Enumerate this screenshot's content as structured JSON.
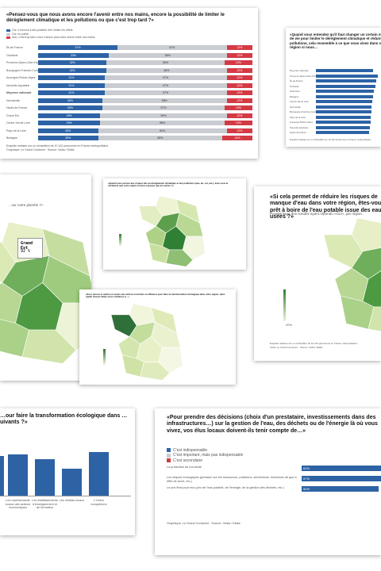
{
  "card1": {
    "title": "«Pensez-vous que nous avons encore l'avenir entre nos mains, encore la possibilité de limiter le dérèglement climatique et les pollutions ou que c'est trop tard ?»",
    "legend": [
      {
        "name": "Oui, il est tout à fait possible d'en limiter les effets",
        "color": "#2d63a5"
      },
      {
        "name": "Oui, en partie",
        "color": "#c9ccd1"
      },
      {
        "name": "Non, c'est trop tard, nous n'avons plus notre avenir entre nos mains",
        "color": "#d43a45"
      }
    ],
    "rows": [
      {
        "label": "Île-de-France",
        "values": [
          37,
          51,
          12
        ],
        "value_labels": [
          "37%",
          "51%",
          "12%"
        ]
      },
      {
        "label": "Occitanie",
        "values": [
          33,
          55,
          12
        ],
        "value_labels": [
          "33%",
          "55%",
          "12%"
        ]
      },
      {
        "label": "Provence-Alpes-Côte d'Azur",
        "values": [
          32,
          55,
          13
        ],
        "value_labels": [
          "32%",
          "55%",
          "13%"
        ]
      },
      {
        "label": "Bourgogne-Franche-Comté",
        "values": [
          32,
          56,
          12
        ],
        "value_labels": [
          "32%",
          "56%",
          "12%"
        ]
      },
      {
        "label": "Auvergne-Rhône-Alpes",
        "values": [
          31,
          57,
          12
        ],
        "value_labels": [
          "31%",
          "57%",
          "12%"
        ]
      },
      {
        "label": "Nouvelle-Aquitaine",
        "values": [
          31,
          57,
          12
        ],
        "value_labels": [
          "31%",
          "57%",
          "12%"
        ]
      },
      {
        "label": "Moyenne nationale",
        "values": [
          31,
          57,
          12
        ],
        "value_labels": [
          "31%",
          "57%",
          "12%"
        ]
      },
      {
        "label": "Normandie",
        "values": [
          30,
          58,
          12
        ],
        "value_labels": [
          "30%",
          "58%",
          "12%"
        ]
      },
      {
        "label": "Hauts-de-France",
        "values": [
          30,
          57,
          13
        ],
        "value_labels": [
          "30%",
          "57%",
          "13%"
        ]
      },
      {
        "label": "Grand Est",
        "values": [
          29,
          59,
          12
        ],
        "value_labels": [
          "29%",
          "59%",
          "12%"
        ]
      },
      {
        "label": "Centre-Val de Loire",
        "values": [
          29,
          58,
          13
        ],
        "value_labels": [
          "29%",
          "58%",
          "13%"
        ]
      },
      {
        "label": "Pays de la Loire",
        "values": [
          28,
          60,
          12
        ],
        "value_labels": [
          "28%",
          "60%",
          "12%"
        ]
      },
      {
        "label": "Bretagne",
        "values": [
          28,
          58,
          14
        ],
        "value_labels": [
          "28%",
          "58%",
          "14%"
        ]
      }
    ],
    "note": "Enquête réalisée sur un échantillon de 10 142 personnes en France métropolitaine.",
    "credit": "Graphique: Le Grand Continent · Source: Vedia / Elabe"
  },
  "card2": {
    "title": "«Quand vous entendez qu'il faut changer un certain mode de vie pour limiter le dérèglement climatique et réduire les pollutions, cela ressemble à ce que vous vivez dans votre région si nous…",
    "color": "#2d63a5",
    "rows": [
      {
        "label": "Moyenne nationale",
        "value": 72
      },
      {
        "label": "Provence-Alpes-Côte d'Azur",
        "value": 78
      },
      {
        "label": "Île-de-France",
        "value": 76
      },
      {
        "label": "Occitanie",
        "value": 75
      },
      {
        "label": "Grand Est",
        "value": 73
      },
      {
        "label": "Bretagne",
        "value": 72
      },
      {
        "label": "Centre-Val de Loire",
        "value": 71
      },
      {
        "label": "Normandie",
        "value": 70
      },
      {
        "label": "Bourgogne-Franche-Comté",
        "value": 70
      },
      {
        "label": "Pays de la Loire",
        "value": 69
      },
      {
        "label": "Auvergne-Rhône-Alpes",
        "value": 69
      },
      {
        "label": "Nouvelle-Aquitaine",
        "value": 68
      },
      {
        "label": "Hauts-de-France",
        "value": 67
      }
    ],
    "note": "Enquête réalisée sur un échantillon de 10 142 personnes en France métropolitaine."
  },
  "card3": {
    "title": "…sur notre planète ?»",
    "tooltip_region": "Grand Est",
    "tooltip_value": "92 %"
  },
  "card4": {
    "title": "«Quand vous pensez aux risques liés au dérèglement climatique et aux pollutions (eau, air, sol, etc.), avez-vous le sentiment que votre région est plus exposée que les autres ?»"
  },
  "card5": {
    "title": "«Si cela permet de réduire les risques de manque d'eau dans votre région, êtes-vous prêt à boire de l'eau potable issue des eaux usées ?»",
    "subtitle": "Pourcentage des sondés ayant répondu «Oui», par région.",
    "legend_min": "20%",
    "note": "Enquête réalisée sur un échantillon de 10 142 personnes en France métropolitaine.",
    "credit": "Carte: Le Grand Continent · Source: Vedia / Elabe"
  },
  "card6": {
    "title": "«Pour réussir et mettre en œuvre des actions concrètes et efficaces pour faire la transformation écologique dans votre région, dans quelle mesure faites-vous confiance à…»"
  },
  "card7": {
    "title": "…our faire la transformation écologique dans …uivants ?»",
    "color": "#2d63a5",
    "bars": [
      {
        "label": "Les représentants locaux des acteurs économiques",
        "value": 52
      },
      {
        "label": "Les établissements d'enseignement et de formation",
        "value": 46
      },
      {
        "label": "Les médias locaux",
        "value": 34
      },
      {
        "label": "L'Union européenne",
        "value": 55
      }
    ]
  },
  "card8": {
    "title": "«Pour prendre des décisions (choix d'un prestataire, investissements dans des infrastructures…) sur la gestion de l'eau, des déchets ou de l'énergie là où vous vivez, vos élus locaux doivent-ils tenir compte de…»",
    "legend": [
      {
        "name": "C'est indispensable",
        "color": "#2d63a5"
      },
      {
        "name": "C'est important, mais pas indispensable",
        "color": "#c9ccd1"
      },
      {
        "name": "C'est secondaire",
        "color": "#d43a45"
      }
    ],
    "rows": [
      {
        "label": "La protection de ma santé",
        "value": 61,
        "value_label": "61%"
      },
      {
        "label": "Les risques écologiques (pression sur les ressources, pollutions, sécheresse, émissions de gaz à effet de serre, etc.)",
        "value": 57,
        "value_label": "57%"
      },
      {
        "label": "Le prix final pour moi (prix de l'eau potable, de l'énergie, de la gestion des déchets, etc.)",
        "value": 50,
        "value_label": "50%"
      }
    ],
    "credit": "Graphique: Le Grand Continent · Source: Vedia / Elabe"
  }
}
